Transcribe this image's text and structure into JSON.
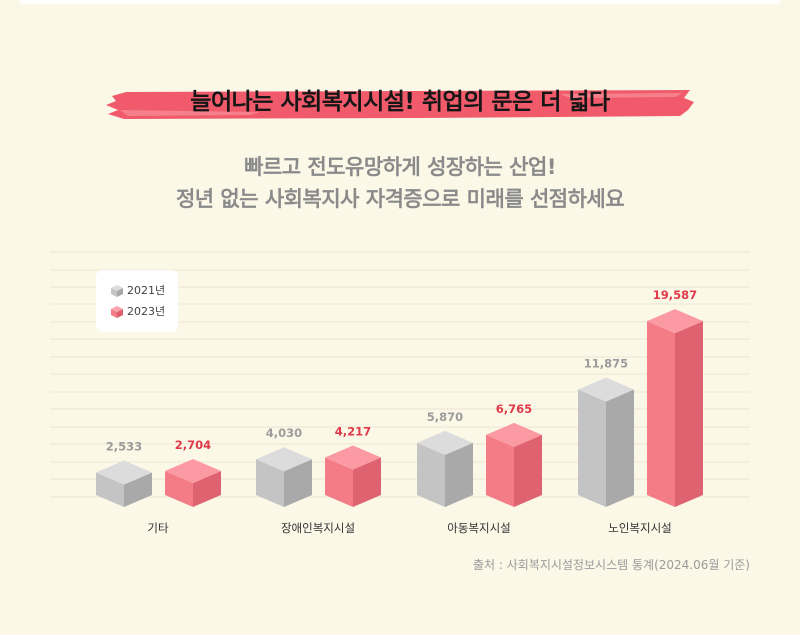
{
  "title": "늘어나는 사회복지시설! 취업의 문은 더 넓다",
  "subtitle_line1": "빠르고 전도유망하게 성장하는 산업!",
  "subtitle_line2": "정년 없는 사회복지사 자격증으로 미래를 선점하세요",
  "source": "출처 : 사회복지시설정보시스템 통계(2024.06월 기준)",
  "colors": {
    "series_2021": "#c4c4c4",
    "series_2023": "#f47c87",
    "label_2021": "#9c9c9c",
    "label_2023": "#e0394a",
    "brush": "#f05a6a"
  },
  "chart_data": {
    "type": "bar",
    "categories": [
      "기타",
      "장애인복지시설",
      "아동복지시설",
      "노인복지시설"
    ],
    "series": [
      {
        "name": "2021년",
        "values": [
          2533,
          4030,
          5870,
          11875
        ],
        "labels": [
          "2,533",
          "4,030",
          "5,870",
          "11,875"
        ]
      },
      {
        "name": "2023년",
        "values": [
          2704,
          4217,
          6765,
          19587
        ],
        "labels": [
          "2,704",
          "4,217",
          "6,765",
          "19,587"
        ]
      }
    ],
    "legend_position": "top-left",
    "grid": true
  }
}
